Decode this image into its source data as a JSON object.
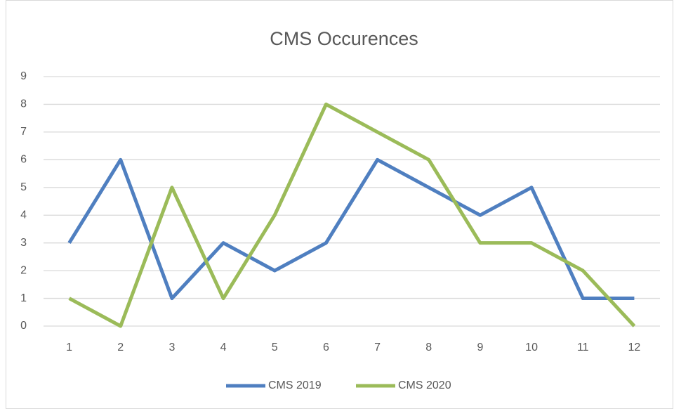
{
  "chart_data": {
    "type": "line",
    "title": "CMS Occurences",
    "categories": [
      "1",
      "2",
      "3",
      "4",
      "5",
      "6",
      "7",
      "8",
      "9",
      "10",
      "11",
      "12"
    ],
    "series": [
      {
        "name": "CMS 2019",
        "color": "#4f7fc0",
        "values": [
          3,
          6,
          1,
          3,
          2,
          3,
          6,
          5,
          4,
          5,
          1,
          1
        ]
      },
      {
        "name": "CMS 2020",
        "color": "#9bbb59",
        "values": [
          1,
          0,
          5,
          1,
          4,
          8,
          7,
          6,
          3,
          3,
          2,
          0
        ]
      }
    ],
    "ylim": [
      0,
      9
    ],
    "yticks": [
      0,
      1,
      2,
      3,
      4,
      5,
      6,
      7,
      8,
      9
    ],
    "grid": true,
    "legend": "bottom"
  }
}
